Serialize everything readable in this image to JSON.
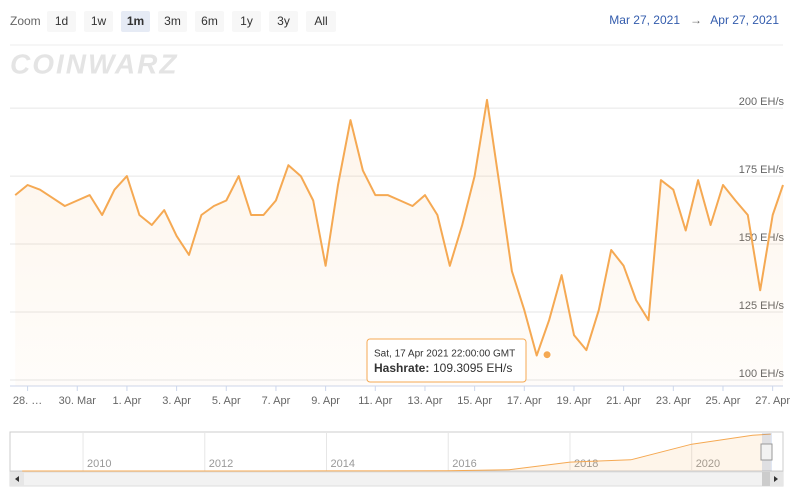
{
  "chart_data": {
    "type": "line",
    "zoom_label": "Zoom",
    "zoom_buttons": [
      "1d",
      "1w",
      "1m",
      "3m",
      "6m",
      "1y",
      "3y",
      "All"
    ],
    "zoom_selected": "1m",
    "range_from": "Mar 27, 2021",
    "range_arrow": "→",
    "range_to": "Apr 27, 2021",
    "watermark": "COINWARZ",
    "series": [
      {
        "name": "Hashrate",
        "color": "#f5a953",
        "values": [
          168,
          171.7,
          170,
          167,
          164,
          166,
          168,
          160.7,
          170,
          175,
          160.7,
          157,
          162.5,
          153,
          146,
          160.7,
          164,
          166,
          175,
          160.7,
          160.7,
          166,
          179,
          175,
          166,
          142,
          171.7,
          195.6,
          177,
          168,
          168,
          166,
          164,
          168,
          160.7,
          142,
          157,
          175,
          203,
          171.7,
          140,
          125.7,
          109,
          122,
          138.6,
          116.5,
          111,
          125.7,
          147.8,
          142,
          129.4,
          122,
          173.5,
          170,
          155,
          173.5,
          157,
          171.7,
          166,
          160.7,
          133,
          160.7,
          171.7
        ]
      }
    ],
    "x": [
      "2021-03-27T12:00",
      "2021-03-28T00:00",
      "2021-03-28T12:00",
      "2021-03-29T00:00",
      "2021-03-29T12:00",
      "2021-03-30T00:00",
      "2021-03-30T12:00",
      "2021-03-31T00:00",
      "2021-03-31T12:00",
      "2021-04-01T00:00",
      "2021-04-01T12:00",
      "2021-04-02T00:00",
      "2021-04-02T12:00",
      "2021-04-03T00:00",
      "2021-04-03T12:00",
      "2021-04-04T00:00",
      "2021-04-04T12:00",
      "2021-04-05T00:00",
      "2021-04-05T12:00",
      "2021-04-06T00:00",
      "2021-04-06T12:00",
      "2021-04-07T00:00",
      "2021-04-07T12:00",
      "2021-04-08T00:00",
      "2021-04-08T12:00",
      "2021-04-09T00:00",
      "2021-04-09T12:00",
      "2021-04-10T00:00",
      "2021-04-10T12:00",
      "2021-04-11T00:00",
      "2021-04-11T12:00",
      "2021-04-12T00:00",
      "2021-04-12T12:00",
      "2021-04-13T00:00",
      "2021-04-13T12:00",
      "2021-04-14T00:00",
      "2021-04-14T12:00",
      "2021-04-15T00:00",
      "2021-04-15T12:00",
      "2021-04-16T00:00",
      "2021-04-16T12:00",
      "2021-04-17T00:00",
      "2021-04-17T12:00",
      "2021-04-18T00:00",
      "2021-04-18T12:00",
      "2021-04-19T00:00",
      "2021-04-19T12:00",
      "2021-04-20T00:00",
      "2021-04-20T12:00",
      "2021-04-21T00:00",
      "2021-04-21T12:00",
      "2021-04-22T00:00",
      "2021-04-22T12:00",
      "2021-04-23T00:00",
      "2021-04-23T12:00",
      "2021-04-24T00:00",
      "2021-04-24T12:00",
      "2021-04-25T00:00",
      "2021-04-25T12:00",
      "2021-04-26T00:00",
      "2021-04-26T12:00",
      "2021-04-27T00:00",
      "2021-04-27T10:00"
    ],
    "xlim": [
      "2021-03-27T07:00",
      "2021-04-27T10:00"
    ],
    "xticks": [
      {
        "value": "2021-03-28T00:00",
        "label": "28. …"
      },
      {
        "value": "2021-03-30T00:00",
        "label": "30. Mar"
      },
      {
        "value": "2021-04-01T00:00",
        "label": "1. Apr"
      },
      {
        "value": "2021-04-03T00:00",
        "label": "3. Apr"
      },
      {
        "value": "2021-04-05T00:00",
        "label": "5. Apr"
      },
      {
        "value": "2021-04-07T00:00",
        "label": "7. Apr"
      },
      {
        "value": "2021-04-09T00:00",
        "label": "9. Apr"
      },
      {
        "value": "2021-04-11T00:00",
        "label": "11. Apr"
      },
      {
        "value": "2021-04-13T00:00",
        "label": "13. Apr"
      },
      {
        "value": "2021-04-15T00:00",
        "label": "15. Apr"
      },
      {
        "value": "2021-04-17T00:00",
        "label": "17. Apr"
      },
      {
        "value": "2021-04-19T00:00",
        "label": "19. Apr"
      },
      {
        "value": "2021-04-21T00:00",
        "label": "21. Apr"
      },
      {
        "value": "2021-04-23T00:00",
        "label": "23. Apr"
      },
      {
        "value": "2021-04-25T00:00",
        "label": "25. Apr"
      },
      {
        "value": "2021-04-27T00:00",
        "label": "27. Apr"
      }
    ],
    "ylim": [
      97.8,
      223.2
    ],
    "yticks": [
      {
        "value": 100,
        "label": "100 EH/s"
      },
      {
        "value": 125,
        "label": "125 EH/s"
      },
      {
        "value": 150,
        "label": "150 EH/s"
      },
      {
        "value": 175,
        "label": "175 EH/s"
      },
      {
        "value": 200,
        "label": "200 EH/s"
      }
    ],
    "grid": true,
    "tooltip": {
      "x": "2021-04-17T22:00",
      "date_label": "Sat, 17 Apr 2021 22:00:00 GMT",
      "name": "Hashrate:",
      "value": 109.3095,
      "value_label": "109.3095 EH/s"
    },
    "navigator": {
      "x": [
        2009,
        2010,
        2011,
        2012,
        2013,
        2014,
        2015,
        2016,
        2017,
        2018,
        2019,
        2020,
        2021,
        2021.3
      ],
      "values": [
        0,
        0,
        0,
        0,
        0.01,
        0.3,
        0.4,
        1.5,
        6,
        40,
        50,
        120,
        160,
        165
      ],
      "xlim": [
        2008.8,
        2021.5
      ],
      "ylim": [
        0,
        170
      ],
      "xticks": [
        2010,
        2012,
        2014,
        2016,
        2018,
        2020
      ]
    }
  }
}
